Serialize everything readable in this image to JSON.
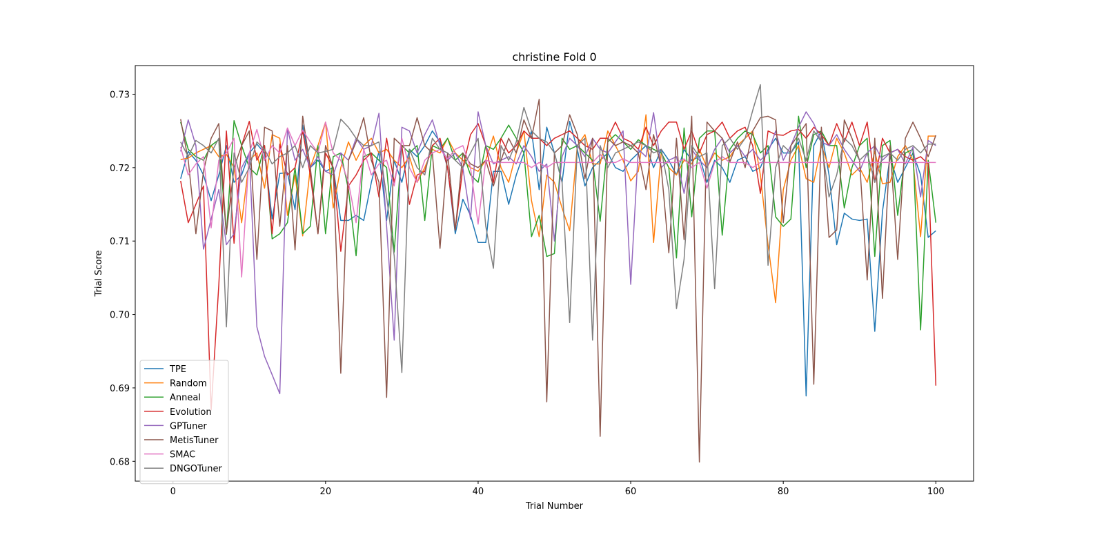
{
  "chart_data": {
    "type": "line",
    "title": "christine Fold 0",
    "xlabel": "Trial Number",
    "ylabel": "Trial Score",
    "xlim": [
      -4.95,
      104.95
    ],
    "ylim": [
      0.6773,
      0.7339
    ],
    "xticks": [
      0,
      20,
      40,
      60,
      80,
      100
    ],
    "xtick_labels": [
      "0",
      "20",
      "40",
      "60",
      "80",
      "100"
    ],
    "yticks": [
      0.68,
      0.69,
      0.7,
      0.71,
      0.72,
      0.73
    ],
    "ytick_labels": [
      "0.68",
      "0.69",
      "0.70",
      "0.71",
      "0.72",
      "0.73"
    ],
    "grid": false,
    "legend_position": "lower-left",
    "x_start": 1,
    "series": [
      {
        "name": "TPE",
        "color": "#1f77b4",
        "values": [
          0.7185,
          0.7222,
          0.721,
          0.719,
          0.7155,
          0.719,
          0.723,
          0.718,
          0.719,
          0.722,
          0.7232,
          0.722,
          0.713,
          0.7192,
          0.7193,
          0.7143,
          0.7258,
          0.72,
          0.721,
          0.7195,
          0.72,
          0.7128,
          0.7128,
          0.7135,
          0.7128,
          0.718,
          0.7222,
          0.7128,
          0.721,
          0.718,
          0.7225,
          0.7215,
          0.723,
          0.725,
          0.7235,
          0.72,
          0.711,
          0.7157,
          0.7135,
          0.7098,
          0.7098,
          0.7195,
          0.7195,
          0.715,
          0.719,
          0.722,
          0.725,
          0.717,
          0.7255,
          0.722,
          0.718,
          0.7263,
          0.7225,
          0.7175,
          0.72,
          0.721,
          0.722,
          0.72,
          0.7195,
          0.721,
          0.722,
          0.723,
          0.72,
          0.7225,
          0.721,
          0.719,
          0.7225,
          0.721,
          0.7215,
          0.718,
          0.721,
          0.72,
          0.718,
          0.721,
          0.7215,
          0.7195,
          0.72,
          0.7225,
          0.724,
          0.722,
          0.722,
          0.7235,
          0.6889,
          0.723,
          0.725,
          0.719,
          0.7095,
          0.7138,
          0.713,
          0.7128,
          0.713,
          0.6977,
          0.714,
          0.7215,
          0.718,
          0.72,
          0.722,
          0.719,
          0.7105,
          0.7114
        ]
      },
      {
        "name": "Random",
        "color": "#ff7f0e",
        "values": [
          0.7211,
          0.7213,
          0.722,
          0.7225,
          0.723,
          0.7215,
          0.7218,
          0.72,
          0.7125,
          0.721,
          0.722,
          0.7172,
          0.7245,
          0.724,
          0.7135,
          0.719,
          0.7107,
          0.72,
          0.723,
          0.7262,
          0.7145,
          0.72,
          0.7235,
          0.721,
          0.723,
          0.724,
          0.722,
          0.7225,
          0.721,
          0.72,
          0.7215,
          0.718,
          0.72,
          0.7225,
          0.722,
          0.724,
          0.722,
          0.721,
          0.72,
          0.7195,
          0.721,
          0.7243,
          0.72,
          0.718,
          0.722,
          0.725,
          0.7155,
          0.7106,
          0.719,
          0.718,
          0.7145,
          0.7114,
          0.723,
          0.7245,
          0.7205,
          0.7205,
          0.725,
          0.723,
          0.721,
          0.7182,
          0.7195,
          0.7272,
          0.7098,
          0.722,
          0.72,
          0.719,
          0.721,
          0.7205,
          0.7225,
          0.72,
          0.722,
          0.721,
          0.7215,
          0.723,
          0.724,
          0.725,
          0.719,
          0.7095,
          0.7016,
          0.717,
          0.721,
          0.723,
          0.7185,
          0.718,
          0.723,
          0.72,
          0.724,
          0.722,
          0.719,
          0.72,
          0.718,
          0.7222,
          0.7178,
          0.718,
          0.7215,
          0.723,
          0.721,
          0.7106,
          0.7243,
          0.7243
        ]
      },
      {
        "name": "Anneal",
        "color": "#2ca02c",
        "values": [
          0.7262,
          0.7225,
          0.7215,
          0.721,
          0.723,
          0.7238,
          0.7109,
          0.7264,
          0.723,
          0.72,
          0.719,
          0.723,
          0.7103,
          0.711,
          0.7125,
          0.72,
          0.711,
          0.712,
          0.723,
          0.711,
          0.7215,
          0.722,
          0.717,
          0.708,
          0.7215,
          0.722,
          0.721,
          0.72,
          0.7085,
          0.723,
          0.722,
          0.723,
          0.7128,
          0.723,
          0.7225,
          0.724,
          0.721,
          0.722,
          0.719,
          0.718,
          0.723,
          0.7225,
          0.724,
          0.7258,
          0.724,
          0.722,
          0.7106,
          0.7135,
          0.7079,
          0.7083,
          0.724,
          0.7225,
          0.723,
          0.722,
          0.721,
          0.7127,
          0.7235,
          0.7245,
          0.7235,
          0.7225,
          0.7238,
          0.723,
          0.7225,
          0.722,
          0.72,
          0.7077,
          0.7254,
          0.7133,
          0.724,
          0.725,
          0.725,
          0.7108,
          0.7225,
          0.724,
          0.725,
          0.7245,
          0.722,
          0.723,
          0.7133,
          0.712,
          0.713,
          0.727,
          0.72,
          0.7245,
          0.725,
          0.723,
          0.723,
          0.7145,
          0.72,
          0.723,
          0.724,
          0.7079,
          0.723,
          0.7237,
          0.7135,
          0.722,
          0.7225,
          0.6979,
          0.721,
          0.7125
        ]
      },
      {
        "name": "Evolution",
        "color": "#d62728",
        "values": [
          0.7182,
          0.7125,
          0.715,
          0.7175,
          0.687,
          0.704,
          0.725,
          0.7097,
          0.723,
          0.7263,
          0.721,
          0.723,
          0.711,
          0.7232,
          0.719,
          0.72,
          0.725,
          0.719,
          0.711,
          0.722,
          0.72,
          0.7086,
          0.7175,
          0.719,
          0.721,
          0.722,
          0.716,
          0.724,
          0.718,
          0.723,
          0.715,
          0.719,
          0.7195,
          0.723,
          0.724,
          0.72,
          0.7115,
          0.72,
          0.7245,
          0.726,
          0.723,
          0.718,
          0.724,
          0.722,
          0.723,
          0.725,
          0.724,
          0.724,
          0.723,
          0.724,
          0.7245,
          0.725,
          0.724,
          0.723,
          0.7225,
          0.724,
          0.724,
          0.7262,
          0.724,
          0.7235,
          0.7225,
          0.7255,
          0.723,
          0.725,
          0.7262,
          0.7262,
          0.7225,
          0.725,
          0.722,
          0.7245,
          0.725,
          0.7262,
          0.724,
          0.725,
          0.7255,
          0.723,
          0.7165,
          0.725,
          0.7245,
          0.7244,
          0.725,
          0.7252,
          0.724,
          0.7255,
          0.7245,
          0.723,
          0.726,
          0.7235,
          0.7262,
          0.723,
          0.7262,
          0.718,
          0.724,
          0.722,
          0.7225,
          0.7215,
          0.721,
          0.7215,
          0.7205,
          0.6903
        ]
      },
      {
        "name": "GPTuner",
        "color": "#9467bd",
        "values": [
          0.7222,
          0.7265,
          0.723,
          0.7089,
          0.713,
          0.717,
          0.7095,
          0.711,
          0.72,
          0.722,
          0.6983,
          0.6943,
          0.6918,
          0.6892,
          0.7253,
          0.721,
          0.7225,
          0.72,
          0.7215,
          0.7195,
          0.719,
          0.722,
          0.721,
          0.724,
          0.7225,
          0.723,
          0.7274,
          0.712,
          0.6965,
          0.7255,
          0.725,
          0.722,
          0.7245,
          0.7265,
          0.723,
          0.721,
          0.722,
          0.72,
          0.713,
          0.7276,
          0.723,
          0.7205,
          0.721,
          0.7215,
          0.7205,
          0.723,
          0.7215,
          0.7195,
          0.7205,
          0.71,
          0.7215,
          0.724,
          0.723,
          0.7215,
          0.724,
          0.7225,
          0.722,
          0.7235,
          0.725,
          0.7041,
          0.7225,
          0.7215,
          0.7275,
          0.72,
          0.721,
          0.7215,
          0.7165,
          0.7225,
          0.721,
          0.72,
          0.7225,
          0.724,
          0.722,
          0.723,
          0.7215,
          0.7225,
          0.721,
          0.722,
          0.725,
          0.721,
          0.723,
          0.7255,
          0.7276,
          0.726,
          0.7235,
          0.723,
          0.7245,
          0.7225,
          0.721,
          0.7195,
          0.722,
          0.723,
          0.721,
          0.722,
          0.7225,
          0.7205,
          0.7228,
          0.716,
          0.7237,
          0.723
        ]
      },
      {
        "name": "MetisTuner",
        "color": "#8c564b",
        "values": [
          0.7266,
          0.721,
          0.711,
          0.7195,
          0.724,
          0.726,
          0.711,
          0.72,
          0.723,
          0.725,
          0.7075,
          0.7255,
          0.725,
          0.712,
          0.723,
          0.7088,
          0.727,
          0.72,
          0.711,
          0.723,
          0.72,
          0.692,
          0.721,
          0.7235,
          0.7268,
          0.721,
          0.718,
          0.6887,
          0.724,
          0.723,
          0.723,
          0.7268,
          0.723,
          0.722,
          0.709,
          0.722,
          0.7115,
          0.722,
          0.7205,
          0.72,
          0.721,
          0.7175,
          0.721,
          0.724,
          0.722,
          0.7265,
          0.724,
          0.7293,
          0.6881,
          0.722,
          0.723,
          0.7272,
          0.7245,
          0.7185,
          0.724,
          0.6834,
          0.724,
          0.723,
          0.7235,
          0.723,
          0.722,
          0.717,
          0.7245,
          0.72,
          0.7084,
          0.724,
          0.7102,
          0.727,
          0.6799,
          0.7262,
          0.725,
          0.724,
          0.7208,
          0.7235,
          0.72,
          0.725,
          0.7268,
          0.727,
          0.7265,
          0.7125,
          0.723,
          0.7245,
          0.726,
          0.6905,
          0.7255,
          0.7105,
          0.7115,
          0.7265,
          0.724,
          0.721,
          0.7047,
          0.724,
          0.7022,
          0.723,
          0.7075,
          0.724,
          0.7262,
          0.724,
          0.7215,
          0.7244
        ]
      },
      {
        "name": "SMAC",
        "color": "#e377c2",
        "values": [
          0.7228,
          0.719,
          0.7205,
          0.7215,
          0.7118,
          0.721,
          0.722,
          0.724,
          0.7051,
          0.722,
          0.7252,
          0.721,
          0.723,
          0.722,
          0.7254,
          0.723,
          0.7251,
          0.7235,
          0.722,
          0.7262,
          0.722,
          0.721,
          0.718,
          0.7125,
          0.7225,
          0.719,
          0.7205,
          0.721,
          0.7175,
          0.724,
          0.72,
          0.718,
          0.721,
          0.722,
          0.7225,
          0.7212,
          0.7225,
          0.723,
          0.72,
          0.7123,
          0.721,
          0.7207,
          0.7207,
          0.7207,
          0.7207,
          0.7207,
          0.72,
          0.7207,
          0.72,
          0.7207,
          0.7207,
          0.7207,
          0.7207,
          0.7207,
          0.7207,
          0.7218,
          0.7207,
          0.7207,
          0.7212,
          0.7207,
          0.7207,
          0.7207,
          0.7207,
          0.7207,
          0.7207,
          0.7207,
          0.7212,
          0.72,
          0.7207,
          0.7172,
          0.7207,
          0.7215,
          0.7207,
          0.7207,
          0.7207,
          0.72,
          0.7207,
          0.7207,
          0.7207,
          0.7207,
          0.7207,
          0.7207,
          0.7207,
          0.7207,
          0.7207,
          0.7207,
          0.7207,
          0.7207,
          0.7207,
          0.7207,
          0.7207,
          0.7207,
          0.7207,
          0.7207,
          0.7207,
          0.7207,
          0.7207,
          0.7207,
          0.7207,
          0.7207
        ]
      },
      {
        "name": "DNGOTuner",
        "color": "#7f7f7f",
        "values": [
          0.7235,
          0.7215,
          0.7237,
          0.723,
          0.722,
          0.724,
          0.6983,
          0.722,
          0.718,
          0.72,
          0.7235,
          0.7225,
          0.7205,
          0.7215,
          0.722,
          0.723,
          0.72,
          0.723,
          0.722,
          0.7222,
          0.7225,
          0.7266,
          0.7255,
          0.724,
          0.723,
          0.723,
          0.7235,
          0.716,
          0.708,
          0.6921,
          0.7225,
          0.72,
          0.719,
          0.724,
          0.7225,
          0.722,
          0.721,
          0.72,
          0.722,
          0.724,
          0.712,
          0.7063,
          0.723,
          0.721,
          0.7235,
          0.7282,
          0.725,
          0.724,
          0.7235,
          0.722,
          0.718,
          0.6989,
          0.723,
          0.724,
          0.6965,
          0.723,
          0.72,
          0.722,
          0.7225,
          0.723,
          0.7235,
          0.723,
          0.722,
          0.7225,
          0.717,
          0.7008,
          0.7075,
          0.723,
          0.7215,
          0.722,
          0.7035,
          0.723,
          0.724,
          0.7225,
          0.724,
          0.7278,
          0.7313,
          0.7067,
          0.72,
          0.723,
          0.722,
          0.724,
          0.721,
          0.725,
          0.7235,
          0.716,
          0.719,
          0.724,
          0.723,
          0.721,
          0.722,
          0.718,
          0.7215,
          0.722,
          0.721,
          0.7225,
          0.723,
          0.722,
          0.7232,
          0.7232
        ]
      }
    ]
  }
}
